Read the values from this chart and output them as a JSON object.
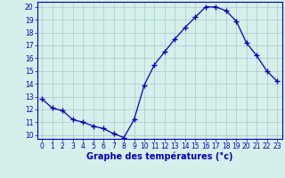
{
  "x": [
    0,
    1,
    2,
    3,
    4,
    5,
    6,
    7,
    8,
    9,
    10,
    11,
    12,
    13,
    14,
    15,
    16,
    17,
    18,
    19,
    20,
    21,
    22,
    23
  ],
  "y": [
    12.8,
    12.1,
    11.9,
    11.2,
    11.0,
    10.7,
    10.5,
    10.1,
    9.8,
    11.2,
    13.9,
    15.5,
    16.5,
    17.5,
    18.4,
    19.2,
    20.0,
    20.0,
    19.7,
    18.9,
    17.2,
    16.2,
    15.0,
    14.2
  ],
  "line_color": "#0000bb",
  "marker": "+",
  "marker_size": 4,
  "bg_color": "#d5f0eb",
  "grid_color": "#a0cccc",
  "axis_color": "#0000bb",
  "xlabel": "Graphe des températures (°c)",
  "xlim_min": -0.5,
  "xlim_max": 23.5,
  "ylim_min": 9.7,
  "ylim_max": 20.4,
  "yticks": [
    10,
    11,
    12,
    13,
    14,
    15,
    16,
    17,
    18,
    19,
    20
  ],
  "xticks": [
    0,
    1,
    2,
    3,
    4,
    5,
    6,
    7,
    8,
    9,
    10,
    11,
    12,
    13,
    14,
    15,
    16,
    17,
    18,
    19,
    20,
    21,
    22,
    23
  ],
  "tick_fontsize": 5.5,
  "xlabel_fontsize": 7.0
}
